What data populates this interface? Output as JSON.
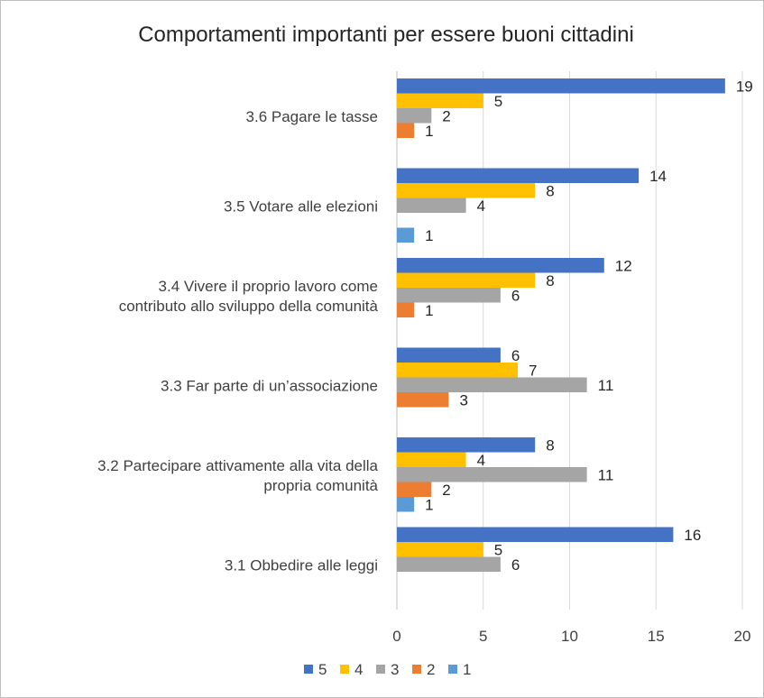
{
  "chart_data": {
    "type": "bar",
    "orientation": "horizontal",
    "title": "Comportamenti importanti per essere buoni cittadini",
    "categories": [
      [
        "3.6 Pagare le tasse"
      ],
      [
        "3.5 Votare alle elezioni"
      ],
      [
        "3.4 Vivere il proprio lavoro come",
        "contributo allo sviluppo della comunità"
      ],
      [
        "3.3 Far parte di un’associazione"
      ],
      [
        "3.2 Partecipare attivamente alla vita della",
        "propria comunità"
      ],
      [
        "3.1 Obbedire alle leggi"
      ]
    ],
    "series": [
      {
        "name": "5",
        "color": "#4472C4",
        "values": [
          19,
          14,
          12,
          6,
          8,
          16
        ]
      },
      {
        "name": "4",
        "color": "#FFC000",
        "values": [
          5,
          8,
          8,
          7,
          4,
          5
        ]
      },
      {
        "name": "3",
        "color": "#A5A5A5",
        "values": [
          2,
          4,
          6,
          11,
          11,
          6
        ]
      },
      {
        "name": "2",
        "color": "#ED7D31",
        "values": [
          1,
          null,
          1,
          3,
          2,
          null
        ]
      },
      {
        "name": "1",
        "color": "#5B9BD5",
        "values": [
          null,
          1,
          null,
          null,
          1,
          null
        ]
      }
    ],
    "xlim": [
      0,
      20
    ],
    "xticks": [
      0,
      5,
      10,
      15,
      20
    ],
    "xlabel": "",
    "ylabel": "",
    "grid": true,
    "legend_position": "bottom"
  }
}
